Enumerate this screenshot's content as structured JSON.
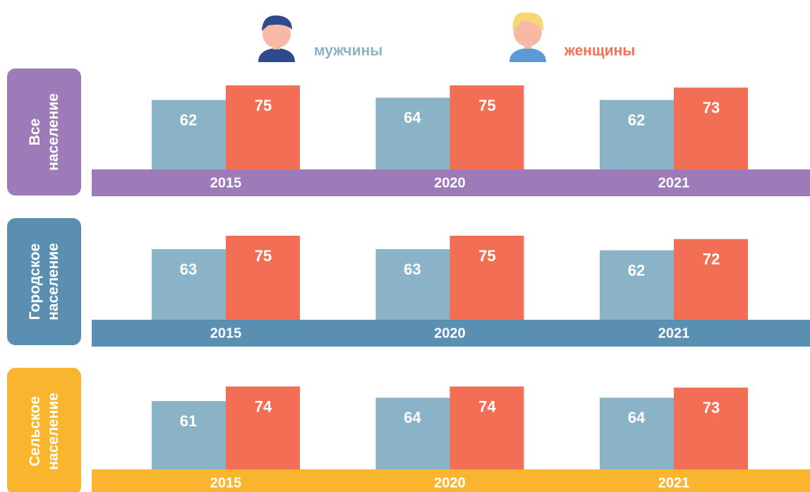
{
  "chart_data": {
    "type": "bar",
    "series": [
      {
        "name": "мужчины",
        "color": "#8bb3c8"
      },
      {
        "name": "женщины",
        "color": "#f26f56"
      }
    ],
    "ylim": [
      0,
      80
    ],
    "panels": [
      {
        "title": "Все население",
        "color": "#9c7bb8",
        "categories": [
          "2015",
          "2020",
          "2021"
        ],
        "values": [
          [
            62,
            64,
            62
          ],
          [
            75,
            75,
            73
          ]
        ]
      },
      {
        "title": "Городское население",
        "color": "#5b8fb1",
        "categories": [
          "2015",
          "2020",
          "2021"
        ],
        "values": [
          [
            63,
            63,
            62
          ],
          [
            75,
            75,
            72
          ]
        ]
      },
      {
        "title": "Сельское население",
        "color": "#f8b52d",
        "categories": [
          "2015",
          "2020",
          "2021"
        ],
        "values": [
          [
            61,
            64,
            64
          ],
          [
            74,
            74,
            73
          ]
        ]
      }
    ]
  }
}
